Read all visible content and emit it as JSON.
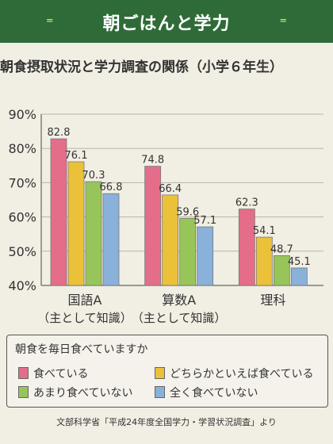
{
  "banner": {
    "title": "朝ごはんと学力",
    "burst_left": "⁼",
    "burst_right": "⁼"
  },
  "subtitle": "朝食摂取状況と学力調査の関係（小学６年生）",
  "chart_data": {
    "type": "bar",
    "categories": [
      {
        "line1": "国語A",
        "line2": "（主として知識）"
      },
      {
        "line1": "算数A",
        "line2": "（主として知識）"
      },
      {
        "line1": "理科",
        "line2": ""
      }
    ],
    "series": [
      {
        "name": "食べている",
        "values": [
          82.8,
          74.8,
          62.3
        ],
        "labels": [
          "82.8",
          "74.8",
          "62.3"
        ],
        "color": "#e46d8a"
      },
      {
        "name": "どちらかといえば食べている",
        "values": [
          76.1,
          66.4,
          54.1
        ],
        "labels": [
          "76.1",
          "66.4",
          "54.1"
        ],
        "color": "#ebc13a"
      },
      {
        "name": "あまり食べていない",
        "values": [
          70.3,
          59.6,
          48.7
        ],
        "labels": [
          "70.3",
          "59.6",
          "48.7"
        ],
        "color": "#97c55a"
      },
      {
        "name": "全く食べていない",
        "values": [
          66.8,
          57.1,
          45.1
        ],
        "labels": [
          "66.8",
          "57.1",
          "45.1"
        ],
        "color": "#89b1da"
      }
    ],
    "yticks": [
      "90%",
      "80%",
      "70%",
      "60%",
      "50%",
      "40%"
    ],
    "ylim": [
      40,
      90
    ],
    "grid": true,
    "legend": {
      "title": "朝食を毎日食べていますか",
      "position": "bottom"
    }
  },
  "source": "文部科学省「平成24年度全国学力・学習状況調査」より"
}
